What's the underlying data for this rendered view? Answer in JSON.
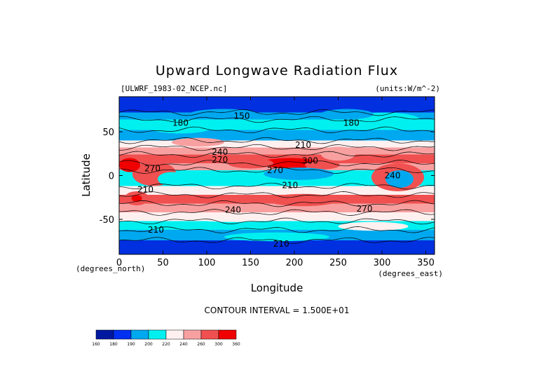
{
  "chart_data": {
    "type": "contour-map",
    "title": "Upward Longwave Radiation Flux",
    "file_label": "[ULWRF_1983-02_NCEP.nc]",
    "units_label": "(units:W/m^-2)",
    "xlabel": "Longitude",
    "ylabel": "Latitude",
    "x_unit_label": "(degrees_east)",
    "y_unit_label": "(degrees_north)",
    "xlim": [
      0,
      360
    ],
    "ylim": [
      -90,
      90
    ],
    "x_ticks": [
      0,
      50,
      100,
      150,
      200,
      250,
      300,
      350
    ],
    "y_ticks": [
      50,
      0,
      -50
    ],
    "contour_interval_text": "CONTOUR INTERVAL = 1.500E+01",
    "contour_interval": 15,
    "contour_labels": [
      {
        "lon": 140,
        "lat": 68,
        "text": "150"
      },
      {
        "lon": 70,
        "lat": 60,
        "text": "180"
      },
      {
        "lon": 265,
        "lat": 60,
        "text": "180"
      },
      {
        "lon": 210,
        "lat": 35,
        "text": "210"
      },
      {
        "lon": 115,
        "lat": 27,
        "text": "240"
      },
      {
        "lon": 115,
        "lat": 18,
        "text": "270"
      },
      {
        "lon": 218,
        "lat": 17,
        "text": "300"
      },
      {
        "lon": 178,
        "lat": 6,
        "text": "270"
      },
      {
        "lon": 38,
        "lat": 8,
        "text": "270"
      },
      {
        "lon": 312,
        "lat": 0,
        "text": "240"
      },
      {
        "lon": 30,
        "lat": -16,
        "text": "210"
      },
      {
        "lon": 195,
        "lat": -11,
        "text": "210"
      },
      {
        "lon": 130,
        "lat": -39,
        "text": "240"
      },
      {
        "lon": 280,
        "lat": -38,
        "text": "270"
      },
      {
        "lon": 42,
        "lat": -62,
        "text": "210"
      },
      {
        "lon": 185,
        "lat": -78,
        "text": "210"
      }
    ],
    "legend": {
      "levels": [
        "160",
        "180",
        "190",
        "200",
        "220",
        "240",
        "260",
        "300",
        "360"
      ],
      "colors": [
        "#0018a0",
        "#0030f0",
        "#00a8f0",
        "#00f0f0",
        "#fff0f0",
        "#f8a0a0",
        "#f05050",
        "#f00000"
      ]
    },
    "field_colors": {
      "ocean_pole": "#0030e0",
      "deep": "#0018a0",
      "mid_blue": "#00a8f0",
      "cyan": "#00f0f0",
      "white": "#fff0f0",
      "pink": "#f8a0a0",
      "salmon": "#f05050",
      "red": "#f00000"
    }
  }
}
